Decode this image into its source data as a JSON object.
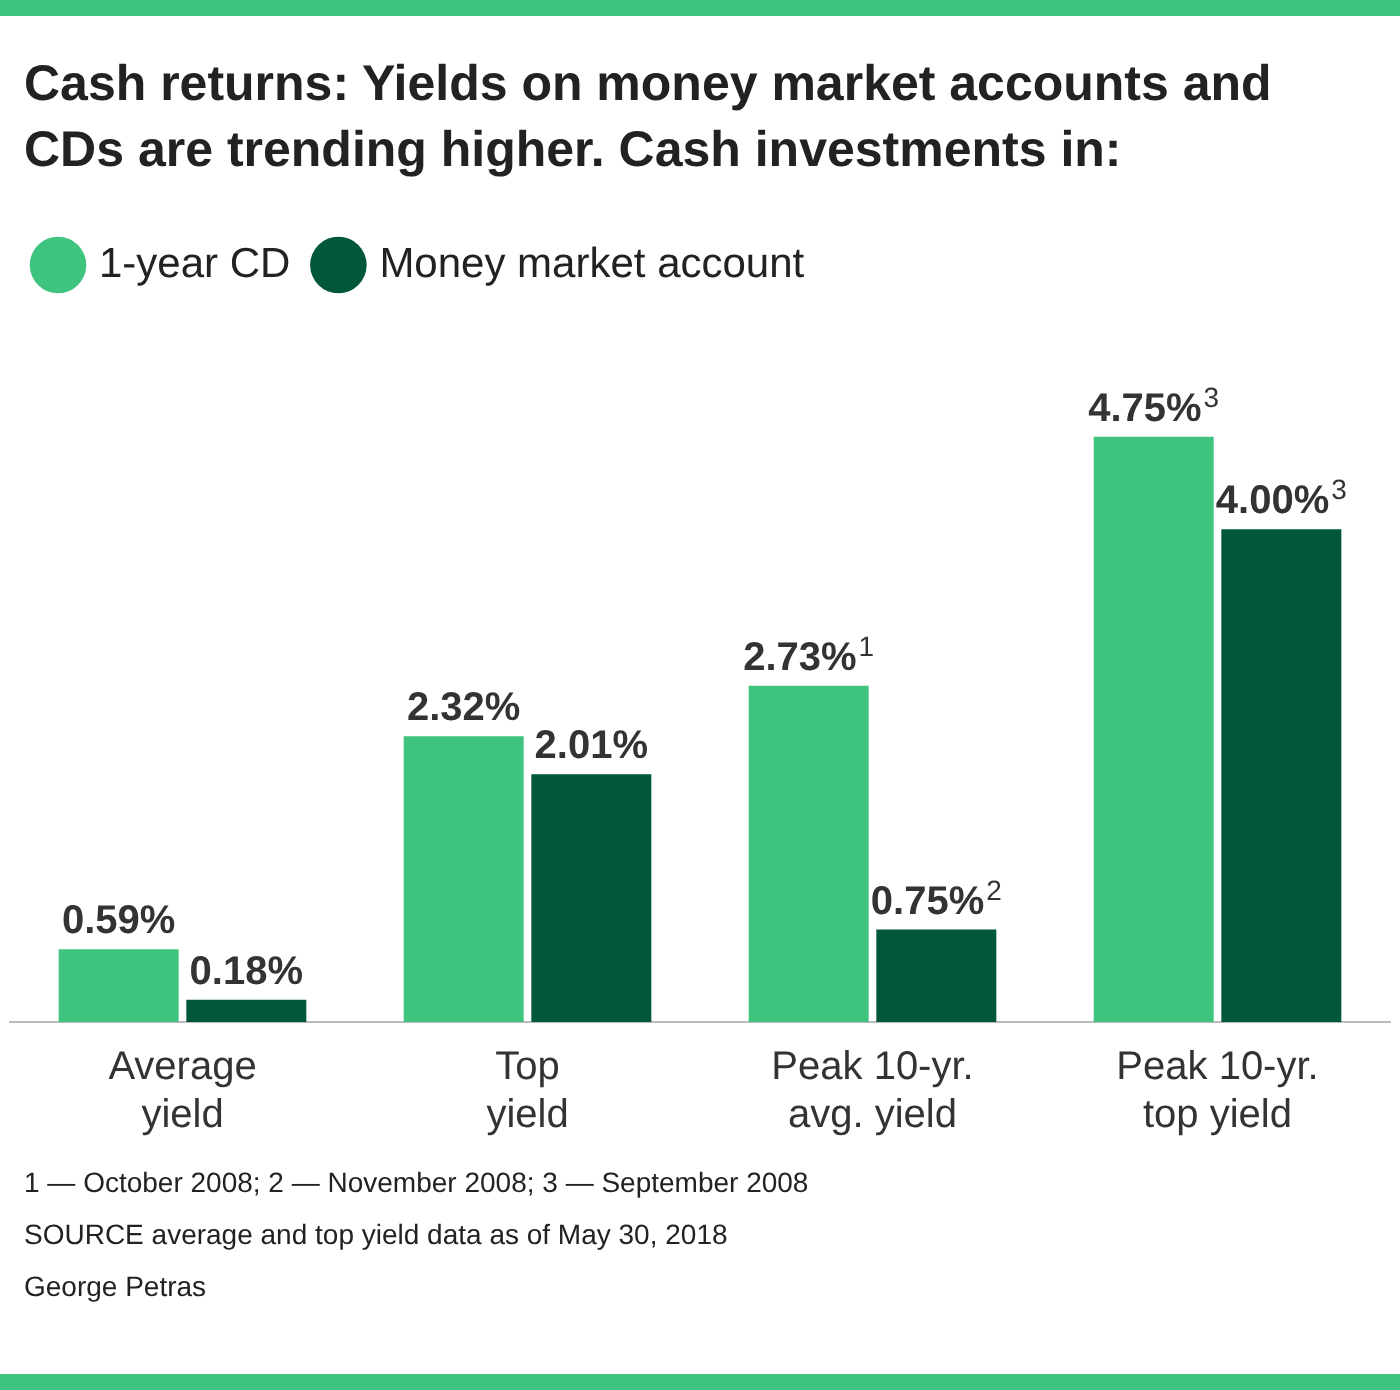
{
  "chart_data": {
    "type": "bar",
    "title": "Cash returns: Yields on money market accounts and CDs are trending higher. Cash investments in:",
    "categories": [
      "Average yield",
      "Top yield",
      "Peak 10-yr. avg. yield",
      "Peak 10-yr. top yield"
    ],
    "series": [
      {
        "name": "1-year CD",
        "color": "#3ec47e",
        "values": [
          0.59,
          2.32,
          2.73,
          4.75
        ],
        "value_labels": [
          "0.59%",
          "2.32%",
          "2.73%$^{1}$",
          "4.75%$^{3}$"
        ]
      },
      {
        "name": "Money market account",
        "color": "#00573a",
        "values": [
          0.18,
          2.01,
          0.75,
          4.0
        ],
        "value_labels": [
          "0.18%",
          "2.01%",
          "0.75%$^{2}$",
          "4.00%$^{3}$"
        ]
      }
    ],
    "legend": "top left",
    "grid": false,
    "annotations": [
      "1 — October 2008; 2 — November 2008; 3 — September 2008",
      "SOURCE average and top yield data as of May 30, 2018",
      "George Petras"
    ]
  }
}
